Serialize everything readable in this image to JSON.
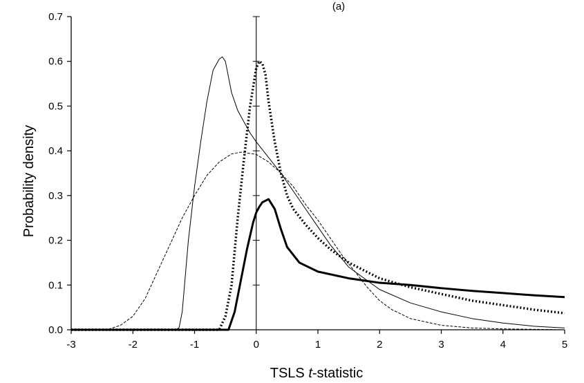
{
  "chart_data": {
    "type": "line",
    "title": "(a)",
    "xlabel": "TSLS t-statistic",
    "xlabel_prefix": "TSLS ",
    "xlabel_italic": "t",
    "xlabel_suffix": "-statistic",
    "ylabel": "Probability density",
    "xlim": [
      -3,
      5
    ],
    "ylim": [
      0,
      0.7
    ],
    "xticks": [
      "-3",
      "-2",
      "-1",
      "0",
      "1",
      "2",
      "3",
      "4",
      "5"
    ],
    "yticks": [
      "0.0",
      "0.1",
      "0.2",
      "0.3",
      "0.4",
      "0.5",
      "0.6",
      "0.7"
    ],
    "grid": false,
    "legend": "none",
    "series": [
      {
        "style": "thin-solid",
        "x": [
          -3,
          -1.3,
          -1.25,
          -1.2,
          -1.15,
          -1.1,
          -1.0,
          -0.9,
          -0.8,
          -0.7,
          -0.6,
          -0.55,
          -0.5,
          -0.4,
          -0.3,
          -0.2,
          -0.1,
          0,
          0.2,
          0.4,
          0.6,
          0.8,
          1.0,
          1.2,
          1.5,
          2.0,
          2.5,
          3.0,
          3.5,
          4.0,
          4.5,
          5.0
        ],
        "y": [
          0,
          0,
          0.005,
          0.04,
          0.12,
          0.2,
          0.32,
          0.42,
          0.51,
          0.58,
          0.605,
          0.61,
          0.6,
          0.53,
          0.49,
          0.465,
          0.44,
          0.42,
          0.385,
          0.35,
          0.31,
          0.27,
          0.23,
          0.19,
          0.14,
          0.09,
          0.06,
          0.04,
          0.025,
          0.015,
          0.008,
          0.004
        ]
      },
      {
        "style": "thin-dashed",
        "x": [
          -3,
          -2.6,
          -2.4,
          -2.2,
          -2.0,
          -1.8,
          -1.6,
          -1.4,
          -1.2,
          -1.0,
          -0.8,
          -0.6,
          -0.4,
          -0.25,
          0,
          0.2,
          0.4,
          0.6,
          0.8,
          1.0,
          1.2,
          1.4,
          1.6,
          1.8,
          2.0,
          2.2,
          2.5,
          3.0,
          3.5,
          4.0,
          4.5,
          5.0
        ],
        "y": [
          0,
          0,
          0.001,
          0.01,
          0.03,
          0.07,
          0.13,
          0.19,
          0.25,
          0.3,
          0.345,
          0.375,
          0.393,
          0.397,
          0.392,
          0.375,
          0.35,
          0.32,
          0.28,
          0.245,
          0.205,
          0.165,
          0.13,
          0.095,
          0.065,
          0.045,
          0.025,
          0.01,
          0.004,
          0.002,
          0.001,
          0.0
        ]
      },
      {
        "style": "thick-dotted",
        "x": [
          -3,
          -0.6,
          -0.5,
          -0.4,
          -0.3,
          -0.2,
          -0.1,
          0,
          0.05,
          0.1,
          0.15,
          0.2,
          0.3,
          0.4,
          0.5,
          0.6,
          0.8,
          1.0,
          1.2,
          1.5,
          2.0,
          2.5,
          3.0,
          3.5,
          4.0,
          4.5,
          5.0
        ],
        "y": [
          0,
          0,
          0.03,
          0.1,
          0.25,
          0.38,
          0.5,
          0.585,
          0.6,
          0.595,
          0.57,
          0.51,
          0.42,
          0.35,
          0.3,
          0.27,
          0.235,
          0.205,
          0.18,
          0.15,
          0.115,
          0.095,
          0.08,
          0.065,
          0.055,
          0.045,
          0.037
        ]
      },
      {
        "style": "thick-solid",
        "x": [
          -3,
          -0.45,
          -0.35,
          -0.25,
          -0.15,
          -0.05,
          0,
          0.05,
          0.1,
          0.2,
          0.3,
          0.4,
          0.5,
          0.7,
          1.0,
          1.5,
          2.0,
          2.5,
          3.0,
          3.5,
          4.0,
          4.5,
          5.0
        ],
        "y": [
          0,
          0,
          0.04,
          0.11,
          0.18,
          0.24,
          0.262,
          0.275,
          0.285,
          0.292,
          0.27,
          0.225,
          0.185,
          0.15,
          0.13,
          0.115,
          0.105,
          0.1,
          0.093,
          0.087,
          0.082,
          0.077,
          0.073
        ]
      }
    ]
  }
}
